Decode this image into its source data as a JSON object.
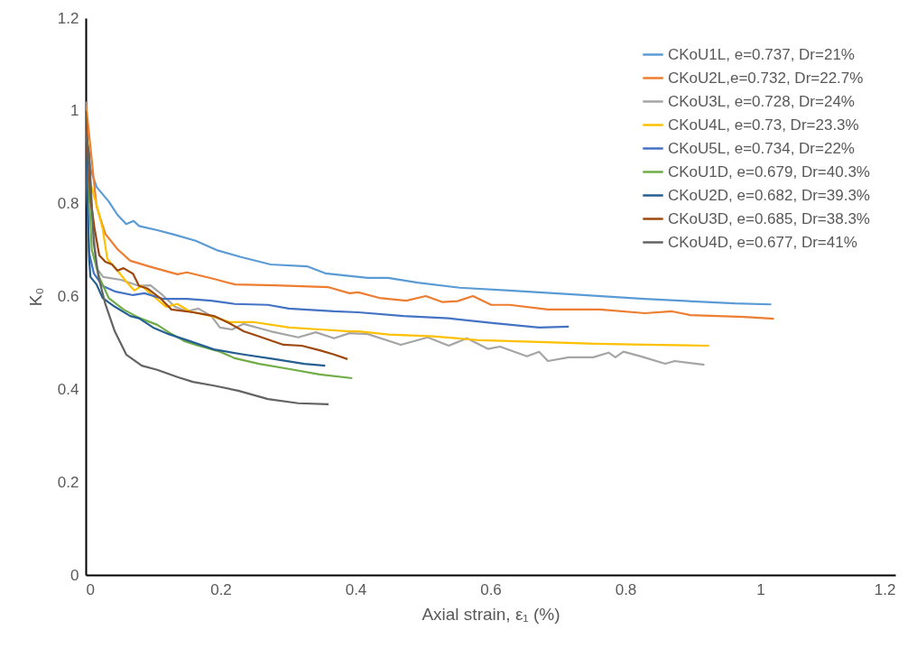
{
  "chart_data": {
    "type": "line",
    "xlabel": "Axial strain, ε₁ (%)",
    "ylabel": "K₀",
    "xlim": [
      0,
      1.2
    ],
    "ylim": [
      0,
      1.2
    ],
    "xticks": [
      0,
      0.2,
      0.4,
      0.6,
      0.8,
      1,
      1.2
    ],
    "yticks": [
      0,
      0.2,
      0.4,
      0.6,
      0.8,
      1,
      1.2
    ],
    "grid": false,
    "legend": "top right",
    "series": [
      {
        "name": "CKoU1L, e=0.737, Dr=21%",
        "color": "#5b9bd5",
        "x": [
          0,
          0.007,
          0.016,
          0.034,
          0.047,
          0.06,
          0.071,
          0.079,
          0.106,
          0.132,
          0.163,
          0.194,
          0.23,
          0.274,
          0.328,
          0.355,
          0.418,
          0.448,
          0.492,
          0.554,
          0.628,
          0.716,
          0.828,
          0.962,
          1.016
        ],
        "values": [
          0.95,
          0.875,
          0.836,
          0.805,
          0.776,
          0.756,
          0.763,
          0.752,
          0.743,
          0.733,
          0.72,
          0.7,
          0.685,
          0.669,
          0.665,
          0.65,
          0.64,
          0.64,
          0.63,
          0.619,
          0.613,
          0.605,
          0.595,
          0.585,
          0.583
        ]
      },
      {
        "name": "CKoU2L,e=0.732, Dr=22.7%",
        "color": "#ed7d31",
        "x": [
          0,
          0.016,
          0.029,
          0.047,
          0.066,
          0.096,
          0.136,
          0.15,
          0.19,
          0.221,
          0.28,
          0.36,
          0.391,
          0.404,
          0.435,
          0.475,
          0.504,
          0.529,
          0.551,
          0.574,
          0.601,
          0.628,
          0.685,
          0.762,
          0.829,
          0.869,
          0.896,
          0.976,
          1.02
        ],
        "values": [
          1.02,
          0.794,
          0.735,
          0.702,
          0.677,
          0.664,
          0.648,
          0.652,
          0.638,
          0.626,
          0.624,
          0.62,
          0.607,
          0.609,
          0.597,
          0.591,
          0.601,
          0.588,
          0.59,
          0.601,
          0.582,
          0.582,
          0.572,
          0.572,
          0.564,
          0.568,
          0.56,
          0.556,
          0.552
        ]
      },
      {
        "name": "CKoU3L, e=0.728, Dr=24%",
        "color": "#a5a5a5",
        "x": [
          0,
          0.016,
          0.026,
          0.052,
          0.079,
          0.096,
          0.114,
          0.132,
          0.15,
          0.167,
          0.186,
          0.199,
          0.217,
          0.234,
          0.274,
          0.315,
          0.341,
          0.368,
          0.391,
          0.418,
          0.467,
          0.507,
          0.538,
          0.565,
          0.596,
          0.614,
          0.654,
          0.672,
          0.685,
          0.716,
          0.752,
          0.775,
          0.785,
          0.797,
          0.823,
          0.859,
          0.873,
          0.917
        ],
        "values": [
          0.95,
          0.661,
          0.642,
          0.636,
          0.623,
          0.624,
          0.603,
          0.578,
          0.568,
          0.574,
          0.558,
          0.533,
          0.529,
          0.541,
          0.525,
          0.512,
          0.523,
          0.51,
          0.521,
          0.519,
          0.496,
          0.512,
          0.494,
          0.51,
          0.487,
          0.492,
          0.471,
          0.481,
          0.461,
          0.469,
          0.469,
          0.479,
          0.469,
          0.481,
          0.471,
          0.455,
          0.461,
          0.453
        ]
      },
      {
        "name": "CKoU4L, e=0.73, Dr=23.3%",
        "color": "#ffc000",
        "x": [
          0,
          0.007,
          0.016,
          0.025,
          0.032,
          0.047,
          0.06,
          0.072,
          0.083,
          0.1,
          0.119,
          0.136,
          0.154,
          0.186,
          0.213,
          0.248,
          0.302,
          0.347,
          0.391,
          0.404,
          0.449,
          0.515,
          0.582,
          0.672,
          0.757,
          0.83,
          0.924
        ],
        "values": [
          1.0,
          0.844,
          0.798,
          0.747,
          0.681,
          0.656,
          0.632,
          0.613,
          0.623,
          0.601,
          0.578,
          0.584,
          0.568,
          0.558,
          0.545,
          0.545,
          0.533,
          0.529,
          0.525,
          0.525,
          0.518,
          0.514,
          0.506,
          0.502,
          0.498,
          0.496,
          0.494
        ]
      },
      {
        "name": "CKoU5L, e=0.734, Dr=22%",
        "color": "#4472c4",
        "x": [
          0,
          0.005,
          0.012,
          0.025,
          0.043,
          0.07,
          0.087,
          0.114,
          0.15,
          0.186,
          0.221,
          0.27,
          0.301,
          0.368,
          0.404,
          0.471,
          0.538,
          0.603,
          0.672,
          0.716
        ],
        "values": [
          0.9,
          0.694,
          0.65,
          0.623,
          0.611,
          0.603,
          0.607,
          0.595,
          0.595,
          0.591,
          0.584,
          0.582,
          0.574,
          0.568,
          0.566,
          0.558,
          0.553,
          0.543,
          0.533,
          0.535
        ]
      },
      {
        "name": "CKoU1D, e=0.679, Dr=40.3%",
        "color": "#70ad47",
        "x": [
          0,
          0.009,
          0.02,
          0.034,
          0.056,
          0.079,
          0.106,
          0.123,
          0.146,
          0.167,
          0.199,
          0.221,
          0.257,
          0.301,
          0.347,
          0.395
        ],
        "values": [
          0.98,
          0.7,
          0.642,
          0.597,
          0.572,
          0.554,
          0.539,
          0.523,
          0.504,
          0.494,
          0.481,
          0.467,
          0.455,
          0.444,
          0.432,
          0.424
        ]
      },
      {
        "name": "CKoU2D, e=0.682, Dr=39.3%",
        "color": "#255e91",
        "x": [
          0,
          0.005,
          0.007,
          0.016,
          0.025,
          0.043,
          0.066,
          0.079,
          0.1,
          0.123,
          0.154,
          0.19,
          0.234,
          0.28,
          0.324,
          0.355
        ],
        "values": [
          0.95,
          0.681,
          0.642,
          0.626,
          0.597,
          0.578,
          0.558,
          0.553,
          0.533,
          0.519,
          0.504,
          0.486,
          0.475,
          0.465,
          0.455,
          0.451
        ]
      },
      {
        "name": "CKoU3D, e=0.685, Dr=38.3%",
        "color": "#9e480e",
        "x": [
          0,
          0.007,
          0.013,
          0.02,
          0.029,
          0.039,
          0.047,
          0.056,
          0.07,
          0.079,
          0.092,
          0.11,
          0.127,
          0.159,
          0.19,
          0.212,
          0.234,
          0.257,
          0.293,
          0.32,
          0.347,
          0.368,
          0.388
        ],
        "values": [
          1.0,
          0.811,
          0.747,
          0.689,
          0.675,
          0.669,
          0.656,
          0.661,
          0.649,
          0.623,
          0.617,
          0.597,
          0.572,
          0.566,
          0.558,
          0.543,
          0.525,
          0.514,
          0.496,
          0.494,
          0.484,
          0.475,
          0.465
        ]
      },
      {
        "name": "CKoU4D, e=0.677, Dr=41%",
        "color": "#636363",
        "x": [
          0,
          0.005,
          0.012,
          0.019,
          0.029,
          0.043,
          0.06,
          0.083,
          0.106,
          0.137,
          0.159,
          0.19,
          0.226,
          0.27,
          0.315,
          0.36
        ],
        "values": [
          0.95,
          0.909,
          0.714,
          0.642,
          0.584,
          0.525,
          0.475,
          0.451,
          0.442,
          0.426,
          0.416,
          0.408,
          0.397,
          0.379,
          0.37,
          0.368
        ]
      }
    ]
  }
}
